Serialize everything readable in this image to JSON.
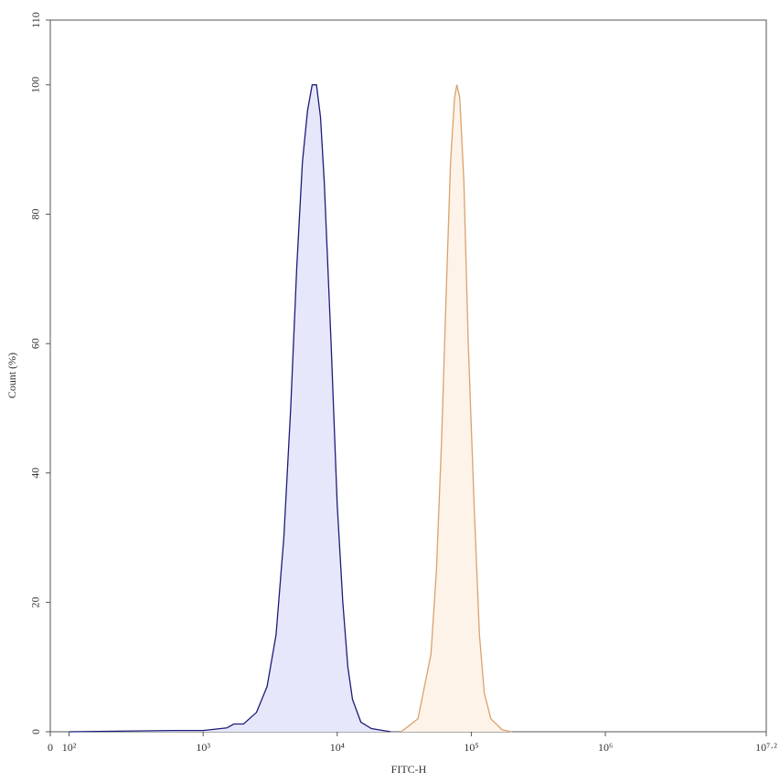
{
  "chart_data": {
    "type": "histogram-overlay",
    "xlabel": "FITC-H",
    "ylabel": "Count (%)",
    "xscale": "biexponential",
    "xlim": [
      0,
      15848932
    ],
    "ylim": [
      0,
      110
    ],
    "xticks": [
      0,
      {
        "value": 100,
        "label": "10²"
      },
      {
        "value": 1000,
        "label": "10³"
      },
      {
        "value": 10000,
        "label": "10⁴"
      },
      {
        "value": 100000,
        "label": "10⁵"
      },
      {
        "value": 1000000,
        "label": "10⁶"
      },
      {
        "value": 15848932,
        "label": "10⁷·²"
      }
    ],
    "yticks": [
      0,
      20,
      40,
      60,
      80,
      100,
      110
    ],
    "series": [
      {
        "color": "#1c1c78",
        "fill": "#e6e7fa",
        "x": [
          100,
          600,
          1000,
          1500,
          1700,
          2000,
          2500,
          3000,
          3500,
          4000,
          4500,
          5000,
          5500,
          6000,
          6500,
          7000,
          7500,
          8000,
          9000,
          10000,
          11000,
          12000,
          13000,
          15000,
          18000,
          25000
        ],
        "values": [
          0,
          0.2,
          0.2,
          0.6,
          1.2,
          1.2,
          3,
          7,
          15,
          30,
          50,
          72,
          88,
          96,
          100,
          100,
          95,
          85,
          60,
          35,
          20,
          10,
          5,
          1.5,
          0.5,
          0
        ]
      },
      {
        "color": "#d9a26e",
        "fill": "#fdf3e8",
        "x": [
          30000,
          40000,
          50000,
          55000,
          60000,
          65000,
          70000,
          75000,
          78000,
          82000,
          88000,
          95000,
          105000,
          115000,
          125000,
          140000,
          170000,
          200000
        ],
        "values": [
          0,
          2,
          12,
          25,
          45,
          68,
          88,
          98,
          100,
          98,
          85,
          60,
          35,
          15,
          6,
          2,
          0.3,
          0
        ]
      }
    ]
  }
}
